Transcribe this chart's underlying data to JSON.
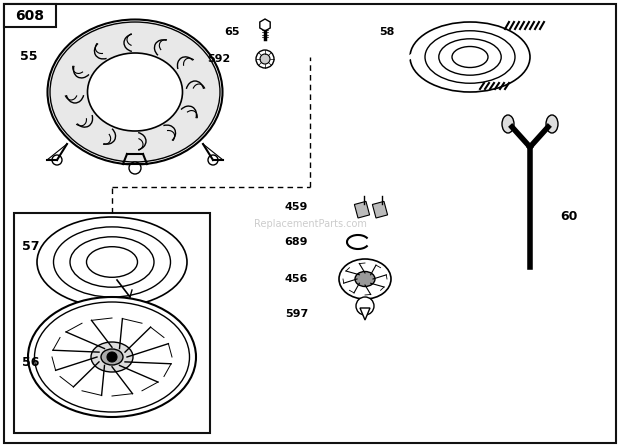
{
  "bg_color": "#ffffff",
  "border_color": "#111111",
  "title": "608",
  "watermark": "ReplacementParts.com",
  "fig_w": 6.2,
  "fig_h": 4.47,
  "dpi": 100
}
